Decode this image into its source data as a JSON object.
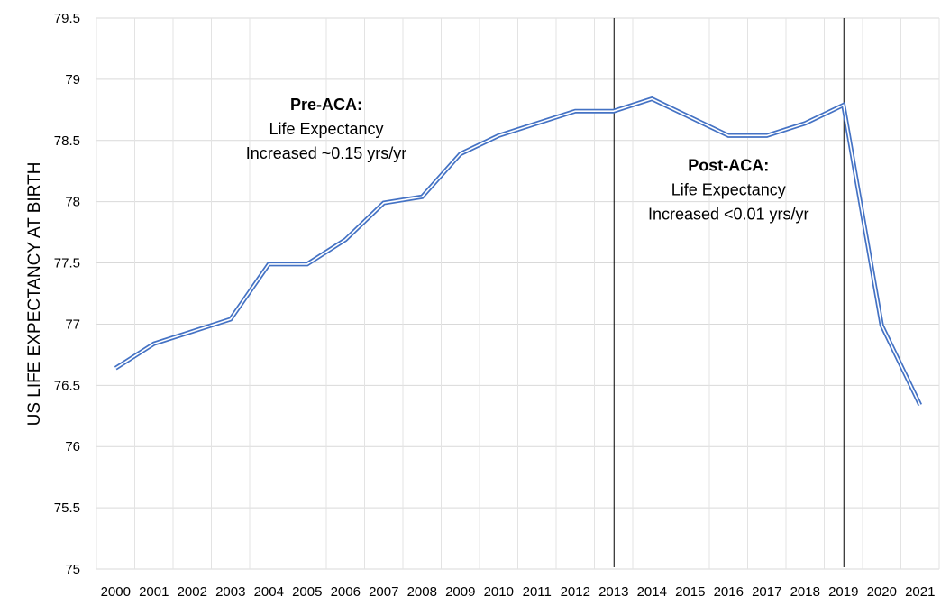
{
  "chart_data": {
    "type": "line",
    "title": "",
    "xlabel": "",
    "ylabel": "US LIFE EXPECTANCY AT BIRTH",
    "ylim": [
      75,
      79.5
    ],
    "yticks": [
      "75",
      "75.5",
      "76",
      "76.5",
      "77",
      "77.5",
      "78",
      "78.5",
      "79",
      "79.5"
    ],
    "grid": true,
    "legend": "none",
    "x": [
      "2000",
      "2001",
      "2002",
      "2003",
      "2004",
      "2005",
      "2006",
      "2007",
      "2008",
      "2009",
      "2010",
      "2011",
      "2012",
      "2013",
      "2014",
      "2015",
      "2016",
      "2017",
      "2018",
      "2019",
      "2020",
      "2021"
    ],
    "series": [
      {
        "color": "#4472c4",
        "values": [
          76.64,
          76.84,
          76.94,
          77.04,
          77.49,
          77.49,
          77.69,
          77.99,
          78.04,
          78.39,
          78.54,
          78.64,
          78.74,
          78.74,
          78.84,
          78.69,
          78.54,
          78.54,
          78.64,
          78.79,
          76.99,
          76.34
        ]
      }
    ],
    "vlines": [
      "2013",
      "2019"
    ],
    "annotations": [
      {
        "x": "2005.5",
        "y": 78.75,
        "lines": [
          {
            "text": "Pre-ACA:",
            "bold": true
          },
          {
            "text": "Life Expectancy",
            "bold": false
          },
          {
            "text": "Increased ~0.15 yrs/yr",
            "bold": false
          }
        ]
      },
      {
        "x": "2016",
        "y": 78.25,
        "lines": [
          {
            "text": "Post-ACA:",
            "bold": true
          },
          {
            "text": "Life Expectancy",
            "bold": false
          },
          {
            "text": "Increased <0.01 yrs/yr",
            "bold": false
          }
        ]
      }
    ]
  }
}
